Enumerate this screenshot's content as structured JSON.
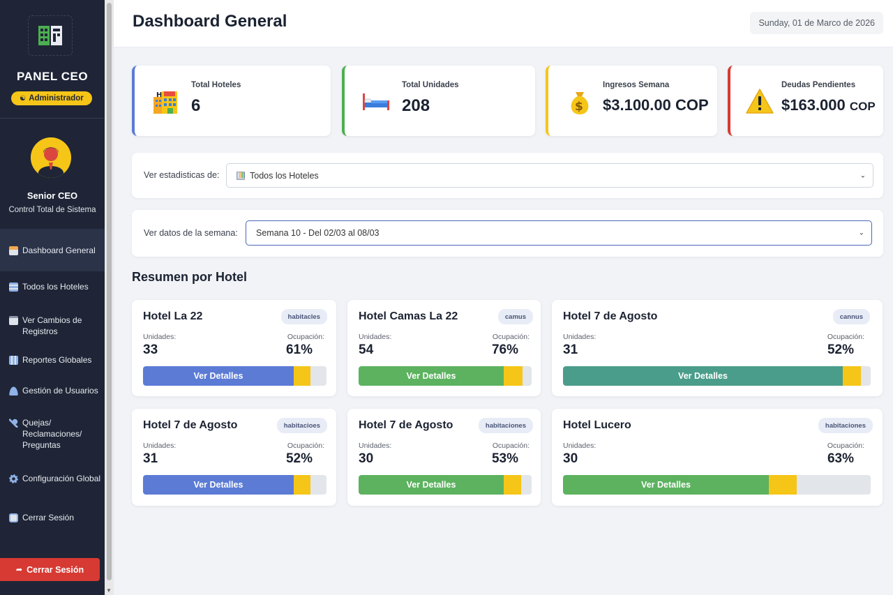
{
  "sidebar": {
    "panel_title": "PANEL CEO",
    "role_badge": "Administrador",
    "user_name": "Senior CEO",
    "user_subtitle": "Control Total de Sistema",
    "items": [
      {
        "label": "Dashboard General",
        "icon": "dashboard-icon",
        "active": true
      },
      {
        "label": "Todos los Hoteles",
        "icon": "hotels-icon"
      },
      {
        "label": "Ver Cambios de Registros",
        "icon": "records-icon"
      },
      {
        "label": "Reportes Globales",
        "icon": "reports-icon"
      },
      {
        "label": "Gestión de Usuarios",
        "icon": "users-icon"
      },
      {
        "label": "Quejas/ Reclamaciones/ Preguntas",
        "icon": "complaints-icon"
      },
      {
        "label": "Configuración Global",
        "icon": "gear-icon"
      },
      {
        "label": "Cerrar Sesión",
        "icon": "logout-icon"
      }
    ],
    "logout_button": "Cerrar Sesión"
  },
  "header": {
    "title": "Dashboard General",
    "date": "Sunday, 01 de Marco de 2026"
  },
  "stats": [
    {
      "label": "Total Hoteles",
      "value": "6",
      "currency": "",
      "icon": "hotel-building-icon",
      "color": "#5b7bd5"
    },
    {
      "label": "Total Unidades",
      "value": "208",
      "currency": "",
      "icon": "bed-icon",
      "color": "#4caf50"
    },
    {
      "label": "Ingresos Semana",
      "value": "$3.100.00 COP",
      "currency": "",
      "icon": "money-bag-icon",
      "color": "#f5c518"
    },
    {
      "label": "Deudas Pendientes",
      "value": "$163.000",
      "currency": "COP",
      "icon": "warning-icon",
      "color": "#d63a33"
    }
  ],
  "filters": {
    "hotel_label": "Ver estadisticas de:",
    "hotel_value": "Todos los Hoteles",
    "week_label": "Ver datos de la semana:",
    "week_value": "Semana 10 - Del 02/03 al 08/03"
  },
  "summary": {
    "title": "Resumen por Hotel",
    "units_label": "Unidades:",
    "occupancy_label": "Ocupación:",
    "details_label": "Ver Detalles",
    "hotels": [
      {
        "name": "Hotel La 22",
        "tag": "habitacles",
        "units": "33",
        "occupancy": "61%",
        "fill_fraction": 0.82,
        "extra_fraction": 0.09,
        "color": "#5b7bd5"
      },
      {
        "name": "Hotel Camas La 22",
        "tag": "camus",
        "units": "54",
        "occupancy": "76%",
        "fill_fraction": 0.84,
        "extra_fraction": 0.11,
        "color": "#5cb25f"
      },
      {
        "name": "Hotel 7 de Agosto",
        "tag": "cannus",
        "units": "31",
        "occupancy": "52%",
        "fill_fraction": 0.91,
        "extra_fraction": 0.06,
        "color": "#4a9d8a"
      },
      {
        "name": "Hotel 7 de Agosto",
        "tag": "habitacioes",
        "units": "31",
        "occupancy": "52%",
        "fill_fraction": 0.82,
        "extra_fraction": 0.09,
        "color": "#5b7bd5"
      },
      {
        "name": "Hotel 7 de Agosto",
        "tag": "habitaciones",
        "units": "30",
        "occupancy": "53%",
        "fill_fraction": 0.84,
        "extra_fraction": 0.1,
        "color": "#5cb25f"
      },
      {
        "name": "Hotel Lucero",
        "tag": "habitaciones",
        "units": "30",
        "occupancy": "63%",
        "fill_fraction": 0.67,
        "extra_fraction": 0.09,
        "color": "#5cb25f"
      }
    ]
  }
}
